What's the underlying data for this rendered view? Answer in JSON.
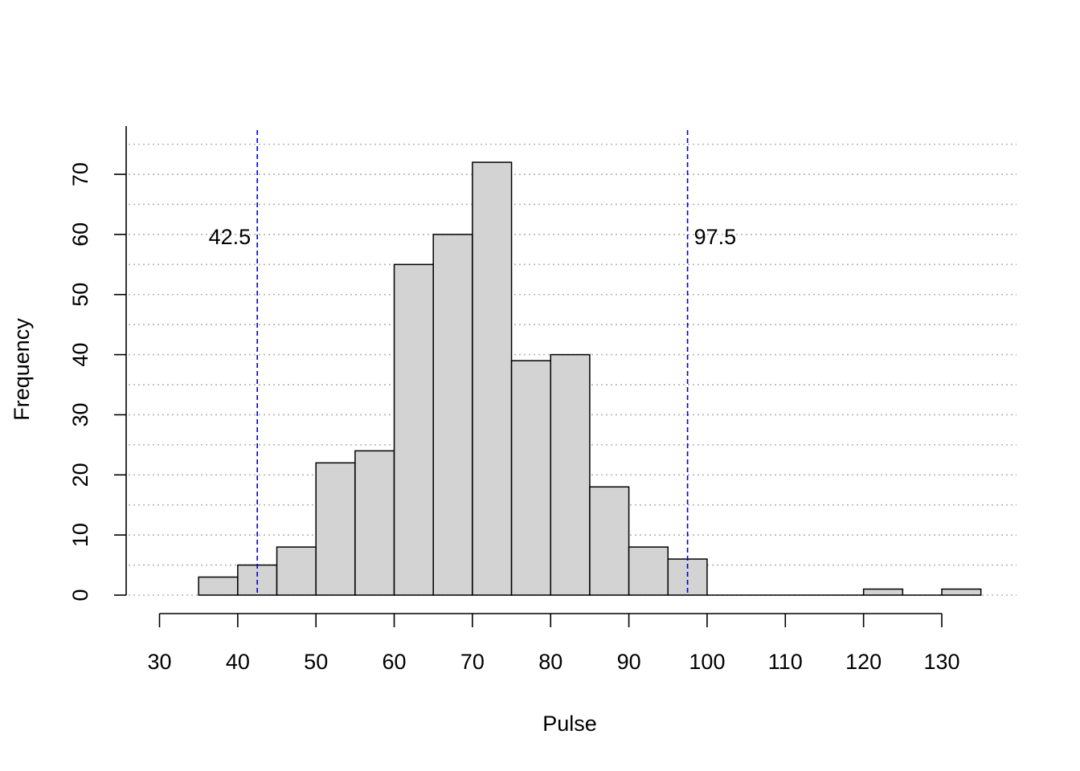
{
  "chart_data": {
    "type": "bar",
    "title": "",
    "xlabel": "Pulse",
    "ylabel": "Frequency",
    "bin_edges": [
      35,
      40,
      45,
      50,
      55,
      60,
      65,
      70,
      75,
      80,
      85,
      90,
      95,
      100,
      105,
      110,
      115,
      120,
      125,
      130,
      135
    ],
    "values": [
      3,
      5,
      8,
      22,
      24,
      55,
      60,
      72,
      39,
      40,
      18,
      8,
      6,
      0,
      0,
      0,
      0,
      1,
      0,
      1
    ],
    "xlim": [
      30,
      135
    ],
    "ylim": [
      0,
      75
    ],
    "x_ticks": [
      "30",
      "40",
      "50",
      "60",
      "70",
      "80",
      "90",
      "100",
      "110",
      "120",
      "130"
    ],
    "y_ticks": [
      "0",
      "10",
      "20",
      "30",
      "40",
      "50",
      "60",
      "70"
    ],
    "grid": "horizontal dotted every 5",
    "bar_color": "#d3d3d3",
    "reference_lines": [
      {
        "x": 42.5,
        "label": "42.5",
        "color": "#0000cd",
        "style": "dashed"
      },
      {
        "x": 97.5,
        "label": "97.5",
        "color": "#0000cd",
        "style": "dashed"
      }
    ]
  }
}
